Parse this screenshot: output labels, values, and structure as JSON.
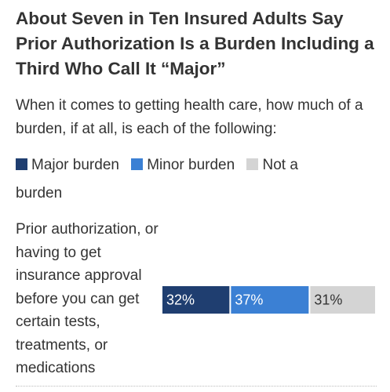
{
  "chart_data": {
    "type": "stacked-bar",
    "orientation": "horizontal",
    "title": "About Seven in Ten Insured Adults Say Prior Authorization Is a Burden Including a Third Who Call It “Major”",
    "subtitle": "When it comes to getting health care, how much of a burden, if at all, is each of the following:",
    "categories": [
      "Prior authorization, or having to get insurance approval before you can get certain tests, treatments, or medications"
    ],
    "series": [
      {
        "name": "Major burden",
        "color": "#1f3e70",
        "values": [
          32
        ],
        "value_labels": [
          "32%"
        ]
      },
      {
        "name": "Minor burden",
        "color": "#3b80d4",
        "values": [
          37
        ],
        "value_labels": [
          "37%"
        ]
      },
      {
        "name": "Not a burden",
        "color": "#d4d4d4",
        "values": [
          31
        ],
        "value_labels": [
          "31%"
        ]
      }
    ],
    "xlim": [
      0,
      100
    ]
  }
}
